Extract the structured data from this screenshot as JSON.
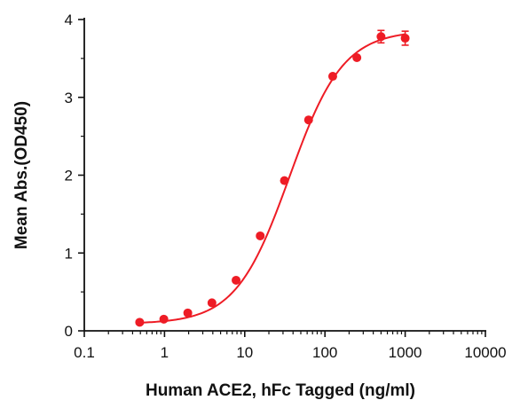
{
  "chart_data": {
    "type": "scatter",
    "title": "",
    "xlabel": "Human ACE2, hFc Tagged (ng/ml)",
    "ylabel": "Mean Abs.(OD450)",
    "x_scale": "log",
    "xlim": [
      0.1,
      10000
    ],
    "ylim": [
      0,
      4
    ],
    "x_ticks": [
      0.1,
      1,
      10,
      100,
      1000,
      10000
    ],
    "x_tick_labels": [
      "0.1",
      "1",
      "10",
      "100",
      "1000",
      "10000"
    ],
    "y_ticks": [
      0,
      1,
      2,
      3,
      4
    ],
    "y_tick_labels": [
      "0",
      "1",
      "2",
      "3",
      "4"
    ],
    "grid": false,
    "series": [
      {
        "color": "#ee1c25",
        "marker": "circle",
        "fit": "four-parameter logistic",
        "x": [
          0.49,
          0.98,
          1.95,
          3.9,
          7.8,
          15.6,
          31.25,
          62.5,
          125,
          250,
          500,
          1000
        ],
        "y": [
          0.11,
          0.15,
          0.23,
          0.36,
          0.65,
          1.22,
          1.93,
          2.71,
          3.27,
          3.51,
          3.78,
          3.76
        ],
        "error": [
          0.0,
          0.0,
          0.0,
          0.0,
          0.0,
          0.0,
          0.0,
          0.0,
          0.0,
          0.0,
          0.08,
          0.09
        ]
      }
    ]
  }
}
